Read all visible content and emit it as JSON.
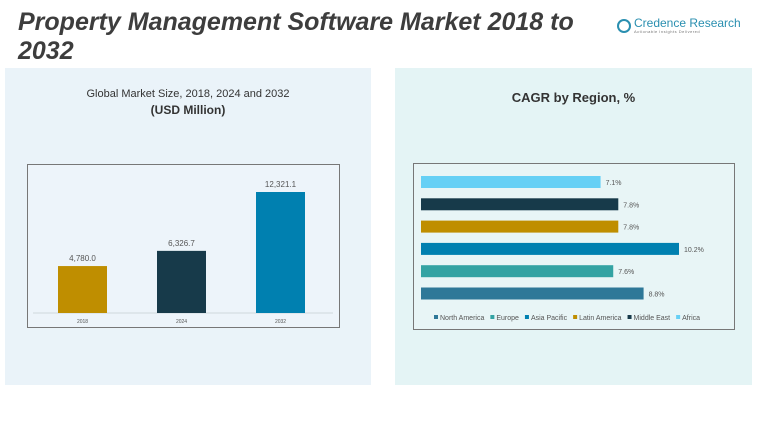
{
  "header": {
    "title": "Property Management Software Market 2018 to 2032",
    "logo_name": "Credence Research",
    "logo_tagline": "Actionable Insights Delivered"
  },
  "chart_data": [
    {
      "type": "bar",
      "title": "Global Market Size, 2018, 2024 and 2032",
      "subtitle": "(USD Million)",
      "categories": [
        "2018",
        "2024",
        "2032"
      ],
      "values": [
        4780.0,
        6326.7,
        12321.1
      ],
      "labels": [
        "4,780.0",
        "6,326.7",
        "12,321.1"
      ],
      "colors": [
        "#bf8e00",
        "#173a4a",
        "#0080b0"
      ],
      "grid": false
    },
    {
      "type": "bar",
      "orientation": "horizontal",
      "title": "CAGR by Region, %",
      "categories": [
        "North America",
        "Europe",
        "Asia Pacific",
        "Latin America",
        "Middle East",
        "Africa"
      ],
      "values": [
        8.8,
        7.6,
        10.2,
        7.8,
        7.8,
        7.1
      ],
      "labels": [
        "8.8%",
        "7.6%",
        "10.2%",
        "7.8%",
        "7.8%",
        "7.1%"
      ],
      "colors": [
        "#2e7898",
        "#33a3a3",
        "#0080b0",
        "#bf8e00",
        "#173a4a",
        "#66d0f5"
      ],
      "legend": "bottom",
      "grid": false
    }
  ]
}
